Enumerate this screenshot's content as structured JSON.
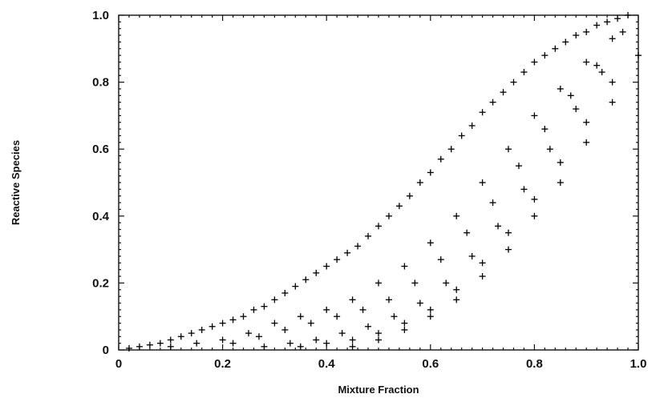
{
  "chart_data": {
    "type": "scatter",
    "title": "",
    "xlabel": "Mixture Fraction",
    "ylabel": "Reactive Species",
    "xlim": [
      0,
      1.0
    ],
    "ylim": [
      0,
      1.0
    ],
    "grid": false,
    "marker": "+",
    "color": "#000000",
    "x_ticks": [
      "0",
      "0.2",
      "0.4",
      "0.6",
      "0.8",
      "1.0"
    ],
    "y_ticks": [
      "0",
      "0.2",
      "0.4",
      "0.6",
      "0.8",
      "1.0"
    ],
    "series": [
      {
        "points": [
          [
            0.02,
            0.005
          ],
          [
            0.04,
            0.01
          ],
          [
            0.06,
            0.015
          ],
          [
            0.08,
            0.02
          ],
          [
            0.1,
            0.03
          ],
          [
            0.12,
            0.04
          ],
          [
            0.14,
            0.05
          ],
          [
            0.16,
            0.06
          ],
          [
            0.18,
            0.07
          ],
          [
            0.2,
            0.08
          ],
          [
            0.22,
            0.09
          ],
          [
            0.24,
            0.1
          ],
          [
            0.26,
            0.12
          ],
          [
            0.28,
            0.13
          ],
          [
            0.3,
            0.15
          ],
          [
            0.32,
            0.17
          ],
          [
            0.34,
            0.19
          ],
          [
            0.36,
            0.21
          ],
          [
            0.38,
            0.23
          ],
          [
            0.4,
            0.25
          ],
          [
            0.42,
            0.27
          ],
          [
            0.44,
            0.29
          ],
          [
            0.46,
            0.31
          ],
          [
            0.48,
            0.34
          ],
          [
            0.5,
            0.37
          ],
          [
            0.52,
            0.4
          ],
          [
            0.54,
            0.43
          ],
          [
            0.56,
            0.46
          ],
          [
            0.58,
            0.5
          ],
          [
            0.6,
            0.53
          ],
          [
            0.62,
            0.57
          ],
          [
            0.64,
            0.6
          ],
          [
            0.66,
            0.64
          ],
          [
            0.68,
            0.67
          ],
          [
            0.7,
            0.71
          ],
          [
            0.72,
            0.74
          ],
          [
            0.74,
            0.77
          ],
          [
            0.76,
            0.8
          ],
          [
            0.78,
            0.83
          ],
          [
            0.8,
            0.86
          ],
          [
            0.82,
            0.88
          ],
          [
            0.84,
            0.9
          ],
          [
            0.86,
            0.92
          ],
          [
            0.88,
            0.94
          ],
          [
            0.9,
            0.95
          ],
          [
            0.92,
            0.97
          ],
          [
            0.94,
            0.98
          ],
          [
            0.96,
            0.99
          ],
          [
            0.98,
            1.0
          ],
          [
            0.1,
            0.01
          ],
          [
            0.15,
            0.02
          ],
          [
            0.2,
            0.03
          ],
          [
            0.25,
            0.05
          ],
          [
            0.3,
            0.08
          ],
          [
            0.35,
            0.1
          ],
          [
            0.4,
            0.12
          ],
          [
            0.45,
            0.15
          ],
          [
            0.5,
            0.2
          ],
          [
            0.55,
            0.25
          ],
          [
            0.6,
            0.32
          ],
          [
            0.65,
            0.4
          ],
          [
            0.7,
            0.5
          ],
          [
            0.75,
            0.6
          ],
          [
            0.8,
            0.7
          ],
          [
            0.85,
            0.78
          ],
          [
            0.9,
            0.86
          ],
          [
            0.95,
            0.93
          ],
          [
            0.22,
            0.02
          ],
          [
            0.27,
            0.04
          ],
          [
            0.32,
            0.06
          ],
          [
            0.37,
            0.08
          ],
          [
            0.42,
            0.1
          ],
          [
            0.47,
            0.12
          ],
          [
            0.52,
            0.15
          ],
          [
            0.57,
            0.2
          ],
          [
            0.62,
            0.27
          ],
          [
            0.67,
            0.35
          ],
          [
            0.72,
            0.44
          ],
          [
            0.77,
            0.55
          ],
          [
            0.82,
            0.66
          ],
          [
            0.87,
            0.76
          ],
          [
            0.92,
            0.85
          ],
          [
            0.97,
            0.95
          ],
          [
            0.28,
            0.01
          ],
          [
            0.33,
            0.02
          ],
          [
            0.38,
            0.03
          ],
          [
            0.43,
            0.05
          ],
          [
            0.48,
            0.07
          ],
          [
            0.53,
            0.1
          ],
          [
            0.58,
            0.14
          ],
          [
            0.63,
            0.2
          ],
          [
            0.68,
            0.28
          ],
          [
            0.73,
            0.37
          ],
          [
            0.78,
            0.48
          ],
          [
            0.83,
            0.6
          ],
          [
            0.88,
            0.72
          ],
          [
            0.93,
            0.83
          ],
          [
            0.35,
            0.01
          ],
          [
            0.4,
            0.02
          ],
          [
            0.45,
            0.03
          ],
          [
            0.5,
            0.05
          ],
          [
            0.55,
            0.08
          ],
          [
            0.6,
            0.12
          ],
          [
            0.65,
            0.18
          ],
          [
            0.7,
            0.26
          ],
          [
            0.75,
            0.35
          ],
          [
            0.8,
            0.45
          ],
          [
            0.85,
            0.56
          ],
          [
            0.9,
            0.68
          ],
          [
            0.95,
            0.8
          ],
          [
            0.45,
            0.01
          ],
          [
            0.5,
            0.03
          ],
          [
            0.55,
            0.06
          ],
          [
            0.6,
            0.1
          ],
          [
            0.65,
            0.15
          ],
          [
            0.7,
            0.22
          ],
          [
            0.75,
            0.3
          ],
          [
            0.8,
            0.4
          ],
          [
            0.85,
            0.5
          ],
          [
            0.9,
            0.62
          ],
          [
            0.95,
            0.74
          ],
          [
            1.0,
            0.88
          ]
        ]
      }
    ]
  }
}
